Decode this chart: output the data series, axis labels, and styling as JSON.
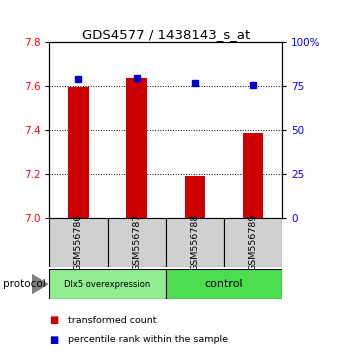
{
  "title": "GDS4577 / 1438143_s_at",
  "samples": [
    "GSM556786",
    "GSM556787",
    "GSM556788",
    "GSM556789"
  ],
  "red_values": [
    7.595,
    7.64,
    7.19,
    7.385
  ],
  "blue_values_pct": [
    79,
    80,
    77,
    76
  ],
  "ylim_left": [
    7.0,
    7.8
  ],
  "ylim_right": [
    0,
    100
  ],
  "yticks_left": [
    7.0,
    7.2,
    7.4,
    7.6,
    7.8
  ],
  "yticks_right": [
    0,
    25,
    50,
    75,
    100
  ],
  "ytick_labels_right": [
    "0",
    "25",
    "50",
    "75",
    "100%"
  ],
  "group0_label": "Dlx5 overexpression",
  "group0_color": "#90ee90",
  "group1_label": "control",
  "group1_color": "#4ddd4d",
  "bar_color": "#cc0000",
  "dot_color": "#0000cc",
  "sample_bg_color": "#d0d0d0",
  "bar_width": 0.35,
  "protocol_label": "protocol",
  "legend_red": "transformed count",
  "legend_blue": "percentile rank within the sample"
}
